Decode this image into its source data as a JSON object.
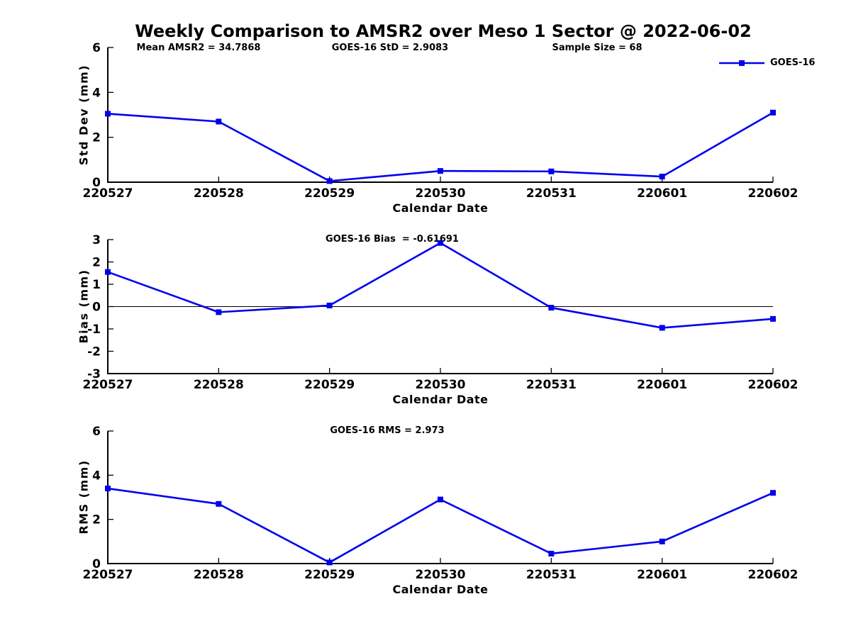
{
  "title": "Weekly Comparison to AMSR2 over Meso 1 Sector @ 2022-06-02",
  "legend": {
    "label": "GOES-16",
    "position": "top-right",
    "box": false
  },
  "colors": {
    "series": "#0000EE",
    "axis": "#000000",
    "text": "#000000",
    "background": "#FFFFFF"
  },
  "chart_data": [
    {
      "type": "line",
      "id": "stddev",
      "title": "",
      "annotations": [
        "Mean AMSR2 = 34.7868",
        "GOES-16 StD = 2.9083",
        "Sample Size = 68"
      ],
      "categories": [
        "220527",
        "220528",
        "220529",
        "220530",
        "220531",
        "220601",
        "220602"
      ],
      "series": [
        {
          "name": "GOES-16",
          "values": [
            3.05,
            2.7,
            0.05,
            0.5,
            0.48,
            0.25,
            3.1
          ]
        }
      ],
      "xlabel": "Calendar Date",
      "ylabel": "Std Dev (mm)",
      "ylim": [
        0,
        6
      ],
      "yticks": [
        0,
        2,
        4,
        6
      ],
      "zero_line": false,
      "grid": false,
      "marker": "square"
    },
    {
      "type": "line",
      "id": "bias",
      "title": "GOES-16 Bias  = -0.61691",
      "annotations": [],
      "categories": [
        "220527",
        "220528",
        "220529",
        "220530",
        "220531",
        "220601",
        "220602"
      ],
      "series": [
        {
          "name": "GOES-16",
          "values": [
            1.55,
            -0.25,
            0.05,
            2.85,
            -0.05,
            -0.95,
            -0.55
          ]
        }
      ],
      "xlabel": "Calendar Date",
      "ylabel": "Bias (mm)",
      "ylim": [
        -3,
        3
      ],
      "yticks": [
        -3,
        -2,
        -1,
        0,
        1,
        2,
        3
      ],
      "zero_line": true,
      "grid": false,
      "marker": "square"
    },
    {
      "type": "line",
      "id": "rms",
      "title": "GOES-16 RMS = 2.973",
      "annotations": [],
      "categories": [
        "220527",
        "220528",
        "220529",
        "220530",
        "220531",
        "220601",
        "220602"
      ],
      "series": [
        {
          "name": "GOES-16",
          "values": [
            3.4,
            2.7,
            0.05,
            2.9,
            0.45,
            1.0,
            3.2
          ]
        }
      ],
      "xlabel": "Calendar Date",
      "ylabel": "RMS (mm)",
      "ylim": [
        0,
        6
      ],
      "yticks": [
        0,
        2,
        4,
        6
      ],
      "zero_line": false,
      "grid": false,
      "marker": "square"
    }
  ]
}
